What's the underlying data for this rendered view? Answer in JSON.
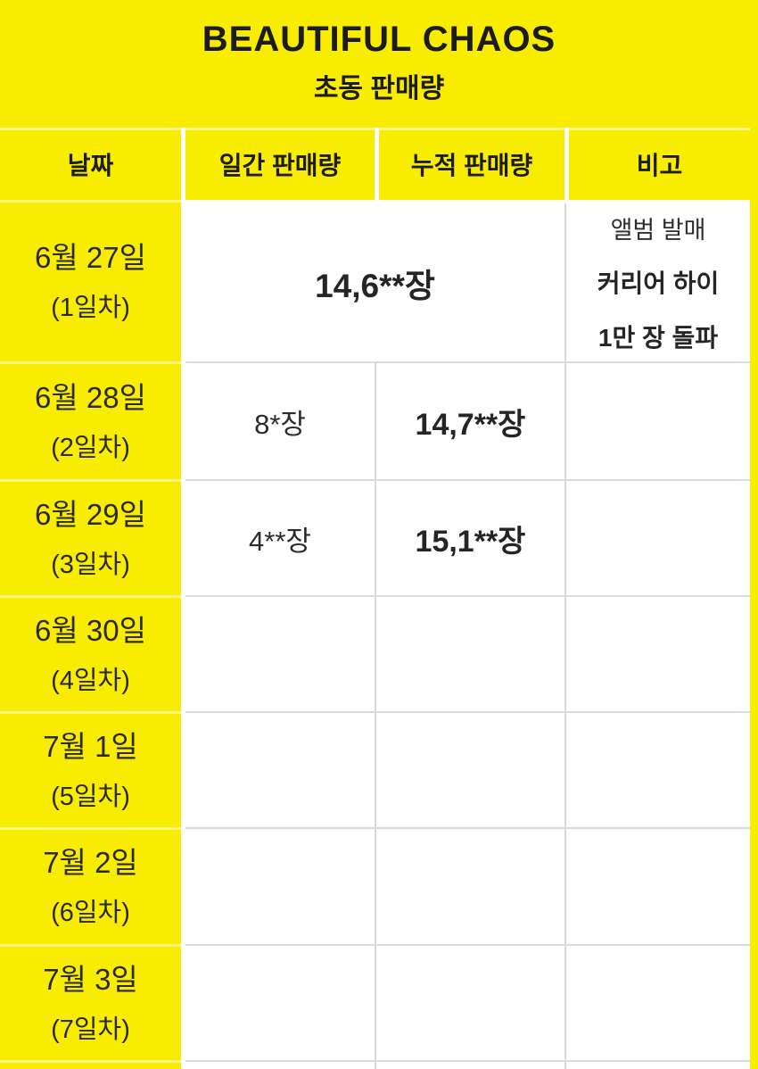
{
  "page": {
    "title": "BEAUTIFUL CHAOS",
    "subtitle": "초동 판매량"
  },
  "table": {
    "headers": [
      "날짜",
      "일간 판매량",
      "누적 판매량",
      "비고"
    ],
    "rows": [
      {
        "date": "6월 27일",
        "day_label": "(1일차)",
        "daily": "",
        "cumulative": "14,6**장",
        "note_lines": [
          "앨범 발매",
          "커리어 하이",
          "1만 장 돌파"
        ]
      },
      {
        "date": "6월 28일",
        "day_label": "(2일차)",
        "daily": "8*장",
        "cumulative": "14,7**장",
        "note_lines": []
      },
      {
        "date": "6월 29일",
        "day_label": "(3일차)",
        "daily": "4**장",
        "cumulative": "15,1**장",
        "note_lines": []
      },
      {
        "date": "6월 30일",
        "day_label": "(4일차)",
        "daily": "",
        "cumulative": "",
        "note_lines": []
      },
      {
        "date": "7월 1일",
        "day_label": "(5일차)",
        "daily": "",
        "cumulative": "",
        "note_lines": []
      },
      {
        "date": "7월 2일",
        "day_label": "(6일차)",
        "daily": "",
        "cumulative": "",
        "note_lines": []
      },
      {
        "date": "7월 3일",
        "day_label": "(7일차)",
        "daily": "",
        "cumulative": "",
        "note_lines": []
      }
    ]
  },
  "colors": {
    "background_yellow": "#f8ec00",
    "cell_white": "#ffffff",
    "grid_line": "#d9d9d9",
    "text_dark": "#222222"
  }
}
